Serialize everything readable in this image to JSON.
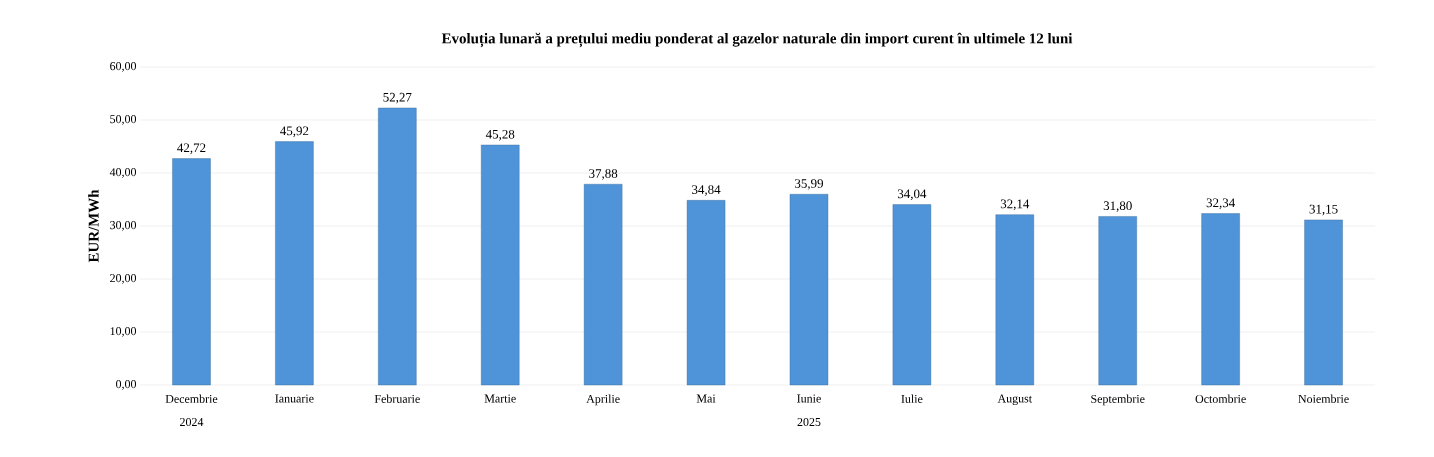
{
  "chart_data": {
    "type": "bar",
    "title": "Evoluția lunară a prețului mediu ponderat al gazelor naturale din import curent în ultimele 12 luni",
    "ylabel": "EUR/MWh",
    "categories": [
      "Decembrie",
      "Ianuarie",
      "Februarie",
      "Martie",
      "Aprilie",
      "Mai",
      "Iunie",
      "Iulie",
      "August",
      "Septembrie",
      "Octombrie",
      "Noiembrie"
    ],
    "values": [
      42.72,
      45.92,
      52.27,
      45.28,
      37.88,
      34.84,
      35.99,
      34.04,
      32.14,
      31.8,
      32.34,
      31.15
    ],
    "value_labels": [
      "42,72",
      "45,92",
      "52,27",
      "45,28",
      "37,88",
      "34,84",
      "35,99",
      "34,04",
      "32,14",
      "31,80",
      "32,34",
      "31,15"
    ],
    "color": "#4f94d9",
    "ylim": [
      0,
      60
    ],
    "yticks": [
      {
        "value": 0,
        "label": "0,00"
      },
      {
        "value": 10,
        "label": "10,00"
      },
      {
        "value": 20,
        "label": "20,00"
      },
      {
        "value": 30,
        "label": "30,00"
      },
      {
        "value": 40,
        "label": "40,00"
      },
      {
        "value": 50,
        "label": "50,00"
      },
      {
        "value": 60,
        "label": "60,00"
      }
    ],
    "grid": "y",
    "annotations": [
      "2024",
      "2025"
    ]
  }
}
